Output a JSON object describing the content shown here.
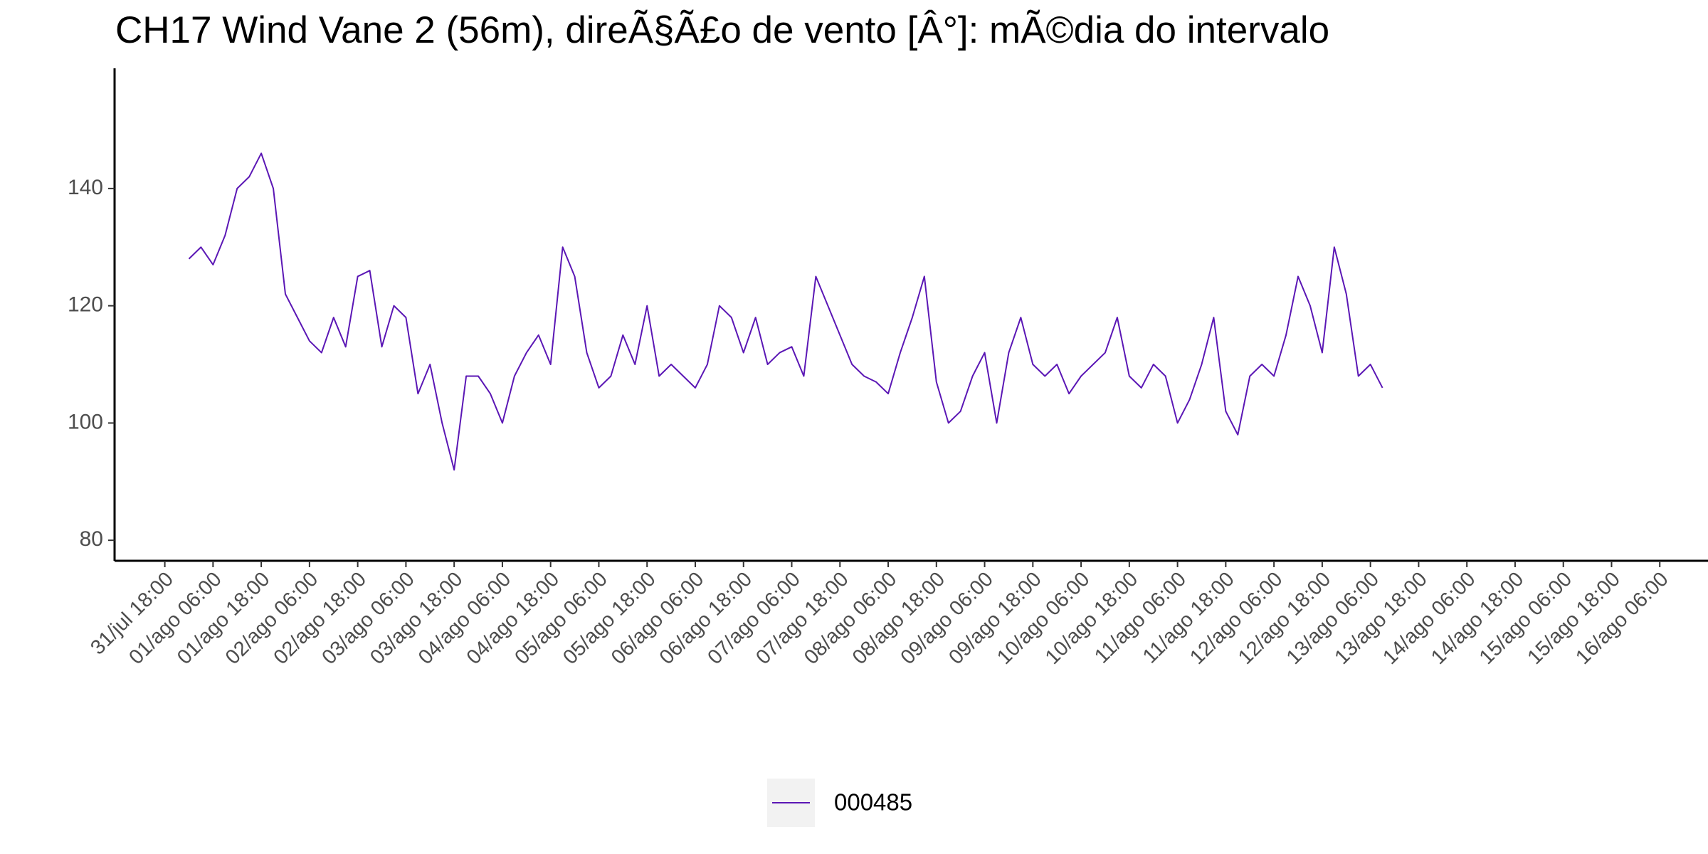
{
  "chart_data": {
    "type": "line",
    "title": "CH17 Wind Vane 2 (56m), direÃ§Ã£o de vento [Â°]: mÃ©dia do intervalo",
    "x": [
      "01/ago 00:00",
      "01/ago 03:00",
      "01/ago 06:00",
      "01/ago 09:00",
      "01/ago 12:00",
      "01/ago 15:00",
      "01/ago 18:00",
      "01/ago 21:00",
      "02/ago 00:00",
      "02/ago 03:00",
      "02/ago 06:00",
      "02/ago 09:00",
      "02/ago 12:00",
      "02/ago 15:00",
      "02/ago 18:00",
      "02/ago 21:00",
      "03/ago 00:00",
      "03/ago 03:00",
      "03/ago 06:00",
      "03/ago 09:00",
      "03/ago 12:00",
      "03/ago 15:00",
      "03/ago 18:00",
      "03/ago 21:00",
      "04/ago 00:00",
      "04/ago 03:00",
      "04/ago 06:00",
      "04/ago 09:00",
      "04/ago 12:00",
      "04/ago 15:00",
      "04/ago 18:00",
      "04/ago 21:00",
      "05/ago 00:00",
      "05/ago 03:00",
      "05/ago 06:00",
      "05/ago 09:00",
      "05/ago 12:00",
      "05/ago 15:00",
      "05/ago 18:00",
      "05/ago 21:00",
      "06/ago 00:00",
      "06/ago 03:00",
      "06/ago 06:00",
      "06/ago 09:00",
      "06/ago 12:00",
      "06/ago 15:00",
      "06/ago 18:00",
      "06/ago 21:00",
      "07/ago 00:00",
      "07/ago 03:00",
      "07/ago 06:00",
      "07/ago 09:00",
      "07/ago 12:00",
      "07/ago 15:00",
      "07/ago 18:00",
      "07/ago 21:00",
      "08/ago 00:00",
      "08/ago 03:00",
      "08/ago 06:00",
      "08/ago 09:00",
      "08/ago 12:00",
      "08/ago 15:00",
      "08/ago 18:00",
      "08/ago 21:00",
      "09/ago 00:00",
      "09/ago 03:00",
      "09/ago 06:00",
      "09/ago 09:00",
      "09/ago 12:00",
      "09/ago 15:00",
      "09/ago 18:00",
      "09/ago 21:00",
      "10/ago 00:00",
      "10/ago 03:00",
      "10/ago 06:00",
      "10/ago 09:00",
      "10/ago 12:00",
      "10/ago 15:00",
      "10/ago 18:00",
      "10/ago 21:00",
      "11/ago 00:00",
      "11/ago 03:00",
      "11/ago 06:00",
      "11/ago 09:00",
      "11/ago 12:00",
      "11/ago 15:00",
      "11/ago 18:00",
      "11/ago 21:00",
      "12/ago 00:00",
      "12/ago 03:00",
      "12/ago 06:00",
      "12/ago 09:00",
      "12/ago 12:00",
      "12/ago 15:00",
      "12/ago 18:00",
      "12/ago 21:00",
      "13/ago 00:00",
      "13/ago 03:00",
      "13/ago 06:00",
      "13/ago 09:00"
    ],
    "series": [
      {
        "name": "000485",
        "color": "#5b17b5",
        "values": [
          128,
          130,
          127,
          132,
          140,
          142,
          146,
          140,
          122,
          118,
          114,
          112,
          118,
          113,
          125,
          126,
          113,
          120,
          118,
          105,
          110,
          100,
          92,
          108,
          108,
          105,
          100,
          108,
          112,
          115,
          110,
          130,
          125,
          112,
          106,
          108,
          115,
          110,
          120,
          108,
          110,
          108,
          106,
          110,
          120,
          118,
          112,
          118,
          110,
          112,
          113,
          108,
          125,
          120,
          115,
          110,
          108,
          107,
          105,
          112,
          118,
          125,
          107,
          100,
          102,
          108,
          112,
          100,
          112,
          118,
          110,
          108,
          110,
          105,
          108,
          110,
          112,
          118,
          108,
          106,
          110,
          108,
          100,
          104,
          110,
          118,
          102,
          98,
          108,
          110,
          108,
          115,
          125,
          120,
          112,
          130,
          122,
          108,
          110,
          106
        ]
      }
    ],
    "xlim": [
      "31/jul 05:30",
      "16/ago 18:00"
    ],
    "xticks": [
      "31/jul 18:00",
      "01/ago 06:00",
      "01/ago 18:00",
      "02/ago 06:00",
      "02/ago 18:00",
      "03/ago 06:00",
      "03/ago 18:00",
      "04/ago 06:00",
      "04/ago 18:00",
      "05/ago 06:00",
      "05/ago 18:00",
      "06/ago 06:00",
      "06/ago 18:00",
      "07/ago 06:00",
      "07/ago 18:00",
      "08/ago 06:00",
      "08/ago 18:00",
      "09/ago 06:00",
      "09/ago 18:00",
      "10/ago 06:00",
      "10/ago 18:00",
      "11/ago 06:00",
      "11/ago 18:00",
      "12/ago 06:00",
      "12/ago 18:00",
      "13/ago 06:00",
      "13/ago 18:00",
      "14/ago 06:00",
      "14/ago 18:00",
      "15/ago 06:00",
      "15/ago 18:00",
      "16/ago 06:00"
    ],
    "ylim": [
      76.5,
      160.5
    ],
    "yticks": [
      80,
      100,
      120,
      140
    ],
    "grid": false,
    "legend": "bottom"
  }
}
